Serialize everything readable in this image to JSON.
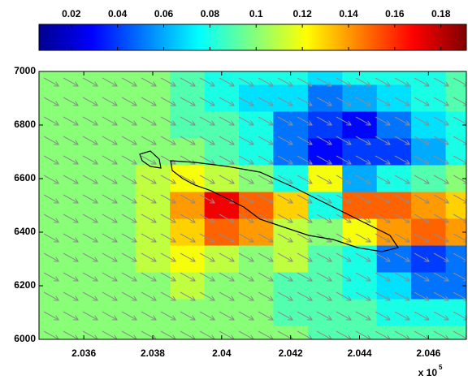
{
  "chart_data": {
    "type": "heatmap",
    "colormap": "jet",
    "x": [
      2.035,
      2.036,
      2.037,
      2.038,
      2.039,
      2.04,
      2.041,
      2.042,
      2.043,
      2.044,
      2.045,
      2.046,
      2.047
    ],
    "y": [
      7000,
      6900,
      6800,
      6700,
      6600,
      6500,
      6400,
      6300,
      6200,
      6100,
      6000
    ],
    "z": [
      [
        0.1,
        0.1,
        0.1,
        0.1,
        0.09,
        0.08,
        0.08,
        0.08,
        0.07,
        0.08,
        0.08,
        0.08,
        0.09
      ],
      [
        0.1,
        0.1,
        0.1,
        0.1,
        0.09,
        0.08,
        0.07,
        0.07,
        0.05,
        0.06,
        0.07,
        0.08,
        0.09
      ],
      [
        0.1,
        0.1,
        0.1,
        0.1,
        0.09,
        0.09,
        0.08,
        0.05,
        0.04,
        0.03,
        0.05,
        0.07,
        0.08
      ],
      [
        0.1,
        0.1,
        0.1,
        0.1,
        0.1,
        0.09,
        0.08,
        0.05,
        0.03,
        0.04,
        0.04,
        0.06,
        0.08
      ],
      [
        0.1,
        0.1,
        0.1,
        0.11,
        0.12,
        0.11,
        0.1,
        0.08,
        0.12,
        0.06,
        0.08,
        0.09,
        0.1
      ],
      [
        0.1,
        0.1,
        0.1,
        0.11,
        0.14,
        0.17,
        0.15,
        0.13,
        0.08,
        0.15,
        0.15,
        0.14,
        0.13
      ],
      [
        0.1,
        0.1,
        0.1,
        0.11,
        0.13,
        0.15,
        0.14,
        0.11,
        0.1,
        0.12,
        0.14,
        0.15,
        0.14
      ],
      [
        0.1,
        0.1,
        0.1,
        0.11,
        0.12,
        0.11,
        0.1,
        0.11,
        0.09,
        0.08,
        0.05,
        0.04,
        0.05
      ],
      [
        0.1,
        0.1,
        0.1,
        0.1,
        0.11,
        0.1,
        0.1,
        0.09,
        0.09,
        0.08,
        0.07,
        0.05,
        0.05
      ],
      [
        0.1,
        0.1,
        0.1,
        0.1,
        0.1,
        0.1,
        0.1,
        0.09,
        0.09,
        0.09,
        0.08,
        0.08,
        0.08
      ],
      [
        0.1,
        0.1,
        0.1,
        0.1,
        0.1,
        0.1,
        0.1,
        0.1,
        0.09,
        0.09,
        0.09,
        0.09,
        0.09
      ]
    ],
    "clim": [
      0.006,
      0.191
    ],
    "cticks": [
      0.02,
      0.04,
      0.06,
      0.08,
      0.1,
      0.12,
      0.14,
      0.16,
      0.18
    ],
    "xlim": [
      2.0347,
      2.0471
    ],
    "xticks": [
      2.036,
      2.038,
      2.04,
      2.042,
      2.044,
      2.046
    ],
    "ylim": [
      6000,
      7000
    ],
    "yticks": [
      6000,
      6200,
      6400,
      6600,
      6800,
      7000
    ],
    "x_exponent_label": {
      "base": "x 10",
      "power": "5"
    },
    "quiver": {
      "u": 1,
      "v": -0.55,
      "color": "#8c8c8c"
    }
  }
}
